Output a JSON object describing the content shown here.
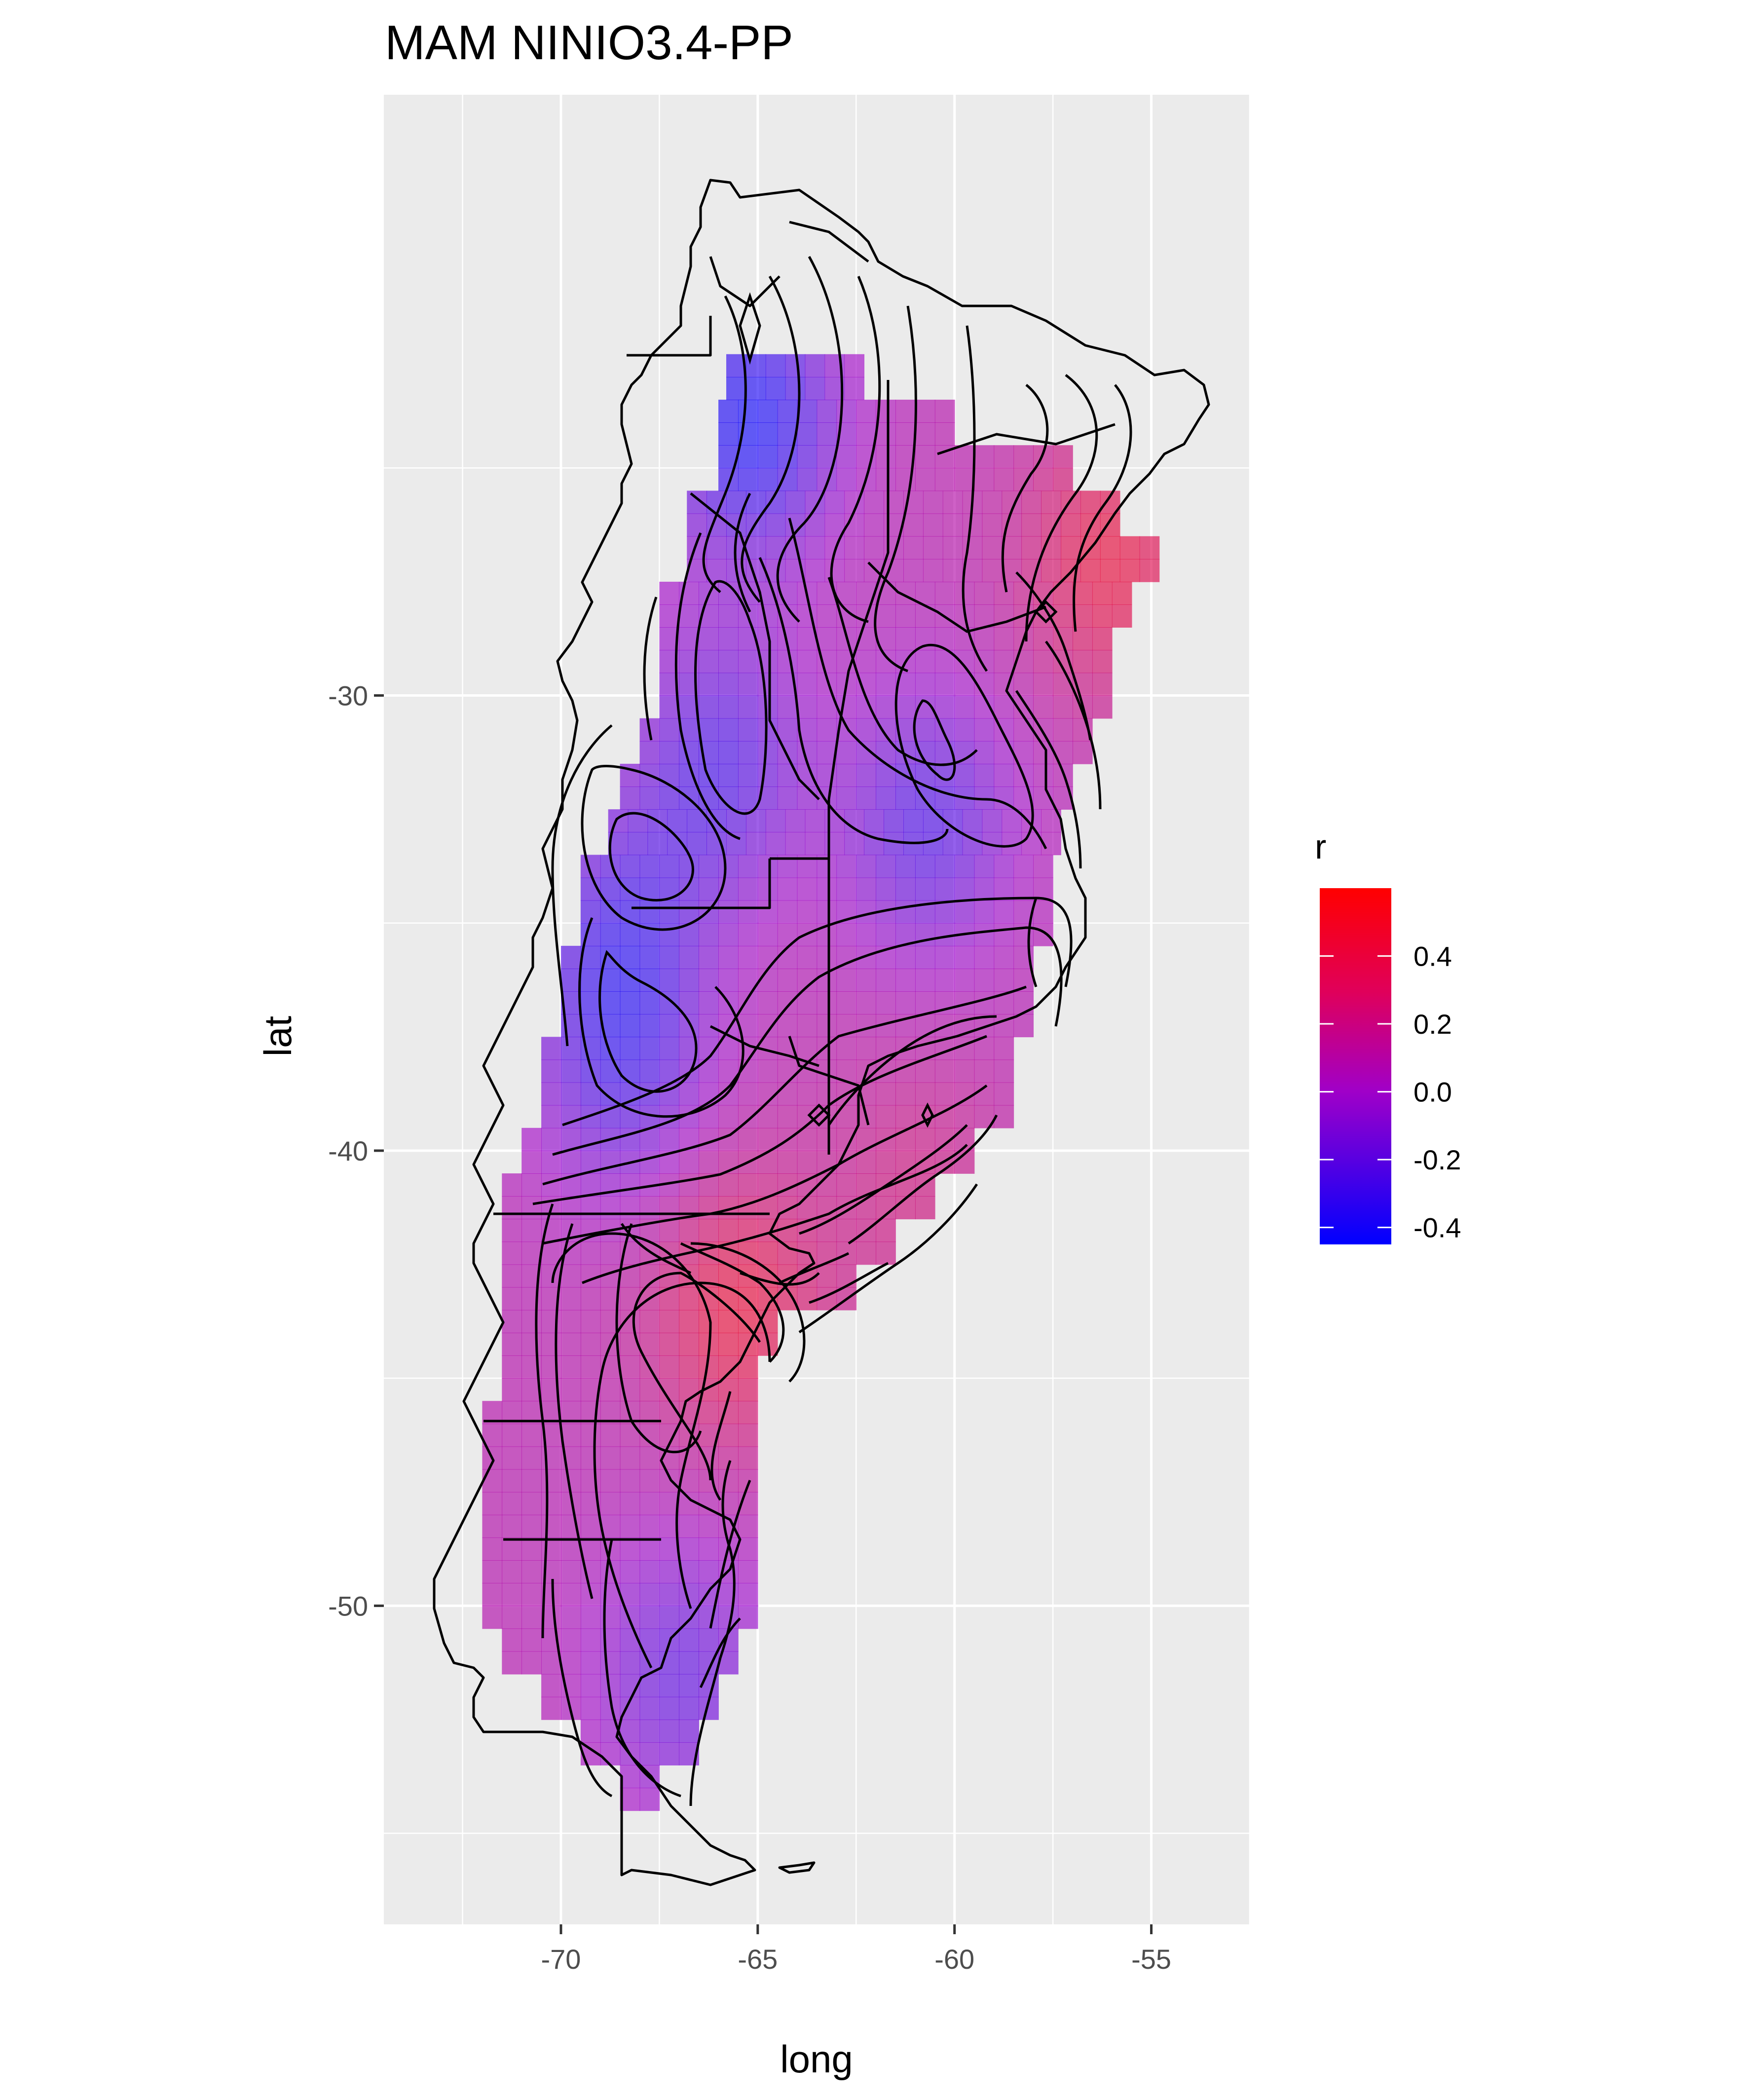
{
  "chart_data": {
    "type": "heatmap",
    "title": "MAM NINIO3.4-PP",
    "xlabel": "long",
    "ylabel": "lat",
    "xlim": [
      -74.5,
      -52.5
    ],
    "ylim": [
      -57,
      -16.8
    ],
    "x_ticks": [
      -70,
      -65,
      -60,
      -55
    ],
    "x_tick_labels": [
      "-70",
      "-65",
      "-60",
      "-55"
    ],
    "y_ticks": [
      -30,
      -40,
      -50
    ],
    "y_tick_labels": [
      "-30",
      "-40",
      "-50"
    ],
    "grid": true,
    "legend": {
      "title": "r",
      "placement": "right",
      "range": [
        -0.45,
        0.6
      ],
      "ticks": [
        0.4,
        0.2,
        0.0,
        -0.2,
        -0.4
      ],
      "tick_labels": [
        "0.4",
        "0.2",
        "0.0",
        "-0.2",
        "-0.4"
      ],
      "low_color": "#0000ff",
      "mid_color": "#a000c8",
      "high_color": "#ff0000"
    },
    "field_centers": [
      {
        "lon": -65.2,
        "lat": -24.0,
        "r": -0.42
      },
      {
        "lon": -60.7,
        "lat": -32.8,
        "r": -0.25
      },
      {
        "lon": -68.5,
        "lat": -35.2,
        "r": -0.22
      },
      {
        "lon": -68.5,
        "lat": -38.3,
        "r": -0.2
      },
      {
        "lon": -66.0,
        "lat": -31.5,
        "r": -0.25
      },
      {
        "lon": -67.0,
        "lat": -51.5,
        "r": -0.2
      },
      {
        "lon": -56.0,
        "lat": -27.0,
        "r": 0.45
      },
      {
        "lon": -65.5,
        "lat": -43.5,
        "r": 0.45
      },
      {
        "lon": -61.0,
        "lat": -41.0,
        "r": 0.25
      }
    ],
    "background_r": 0.1
  }
}
